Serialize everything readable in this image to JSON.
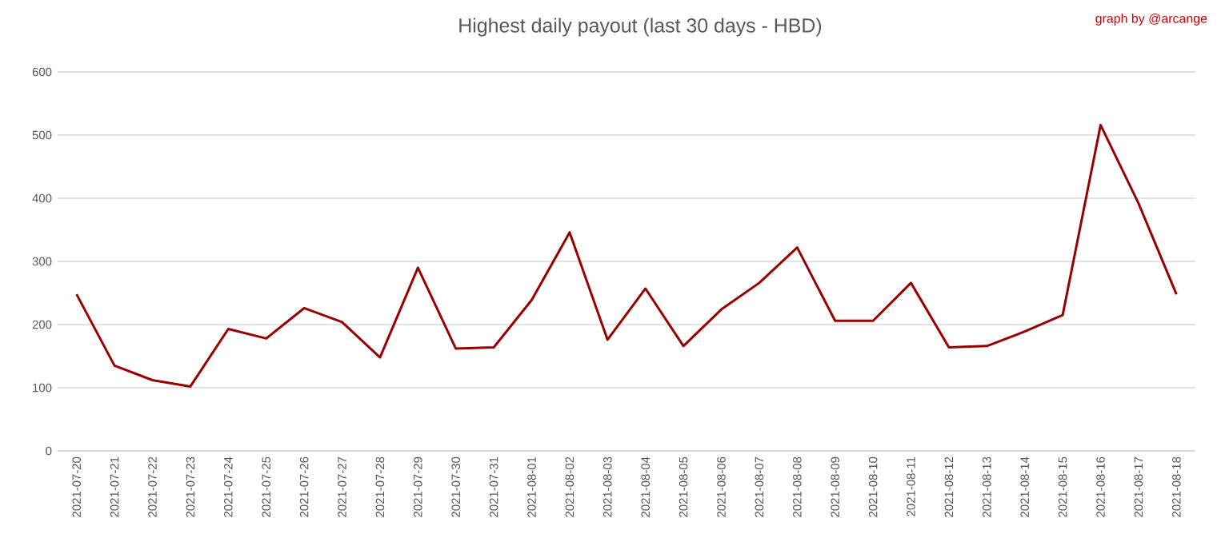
{
  "chart_data": {
    "type": "line",
    "title": "Highest daily payout (last 30 days - HBD)",
    "annotations": [
      "graph by @arcange"
    ],
    "categories": [
      "2021-07-20",
      "2021-07-21",
      "2021-07-22",
      "2021-07-23",
      "2021-07-24",
      "2021-07-25",
      "2021-07-26",
      "2021-07-27",
      "2021-07-28",
      "2021-07-29",
      "2021-07-30",
      "2021-07-31",
      "2021-08-01",
      "2021-08-02",
      "2021-08-03",
      "2021-08-04",
      "2021-08-05",
      "2021-08-06",
      "2021-08-07",
      "2021-08-08",
      "2021-08-09",
      "2021-08-10",
      "2021-08-11",
      "2021-08-12",
      "2021-08-13",
      "2021-08-14",
      "2021-08-15",
      "2021-08-16",
      "2021-08-17",
      "2021-08-18"
    ],
    "series": [
      {
        "color": "#990000",
        "values": [
          248,
          135,
          112,
          102,
          193,
          178,
          226,
          204,
          148,
          290,
          162,
          164,
          239,
          346,
          176,
          257,
          166,
          224,
          266,
          322,
          206,
          206,
          266,
          164,
          166,
          189,
          215,
          516,
          392,
          248
        ]
      }
    ],
    "ylim": [
      0,
      600
    ],
    "yticks": [
      0,
      100,
      200,
      300,
      400,
      500,
      600
    ],
    "grid": "y",
    "marker": "none",
    "line_style": "solid"
  }
}
